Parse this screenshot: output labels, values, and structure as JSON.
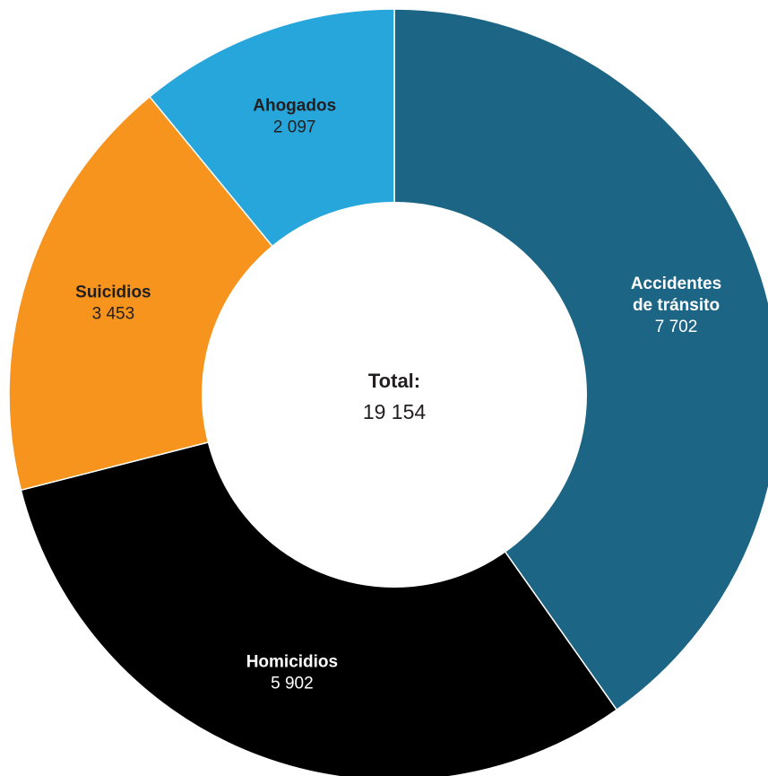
{
  "chart_data": {
    "type": "pie",
    "variant": "donut",
    "categories": [
      "Accidentes de tránsito",
      "Homicidios",
      "Suicidios",
      "Ahogados"
    ],
    "values": [
      7702,
      5902,
      3453,
      2097
    ],
    "slices": [
      {
        "label_lines": [
          "Accidentes",
          "de tránsito"
        ],
        "value": 7702,
        "value_label": "7 702",
        "color": "#1c6585",
        "text_color": "#ffffff"
      },
      {
        "label_lines": [
          "Homicidios"
        ],
        "value": 5902,
        "value_label": "5 902",
        "color": "#000000",
        "text_color": "#ffffff"
      },
      {
        "label_lines": [
          "Suicidios"
        ],
        "value": 3453,
        "value_label": "3 453",
        "color": "#f7941d",
        "text_color": "#231f20"
      },
      {
        "label_lines": [
          "Ahogados"
        ],
        "value": 2097,
        "value_label": "2 097",
        "color": "#27a6dc",
        "text_color": "#231f20"
      }
    ],
    "center": {
      "title": "Total:",
      "value_label": "19 154",
      "value": 19154
    },
    "start": "top",
    "direction": "clockwise"
  }
}
